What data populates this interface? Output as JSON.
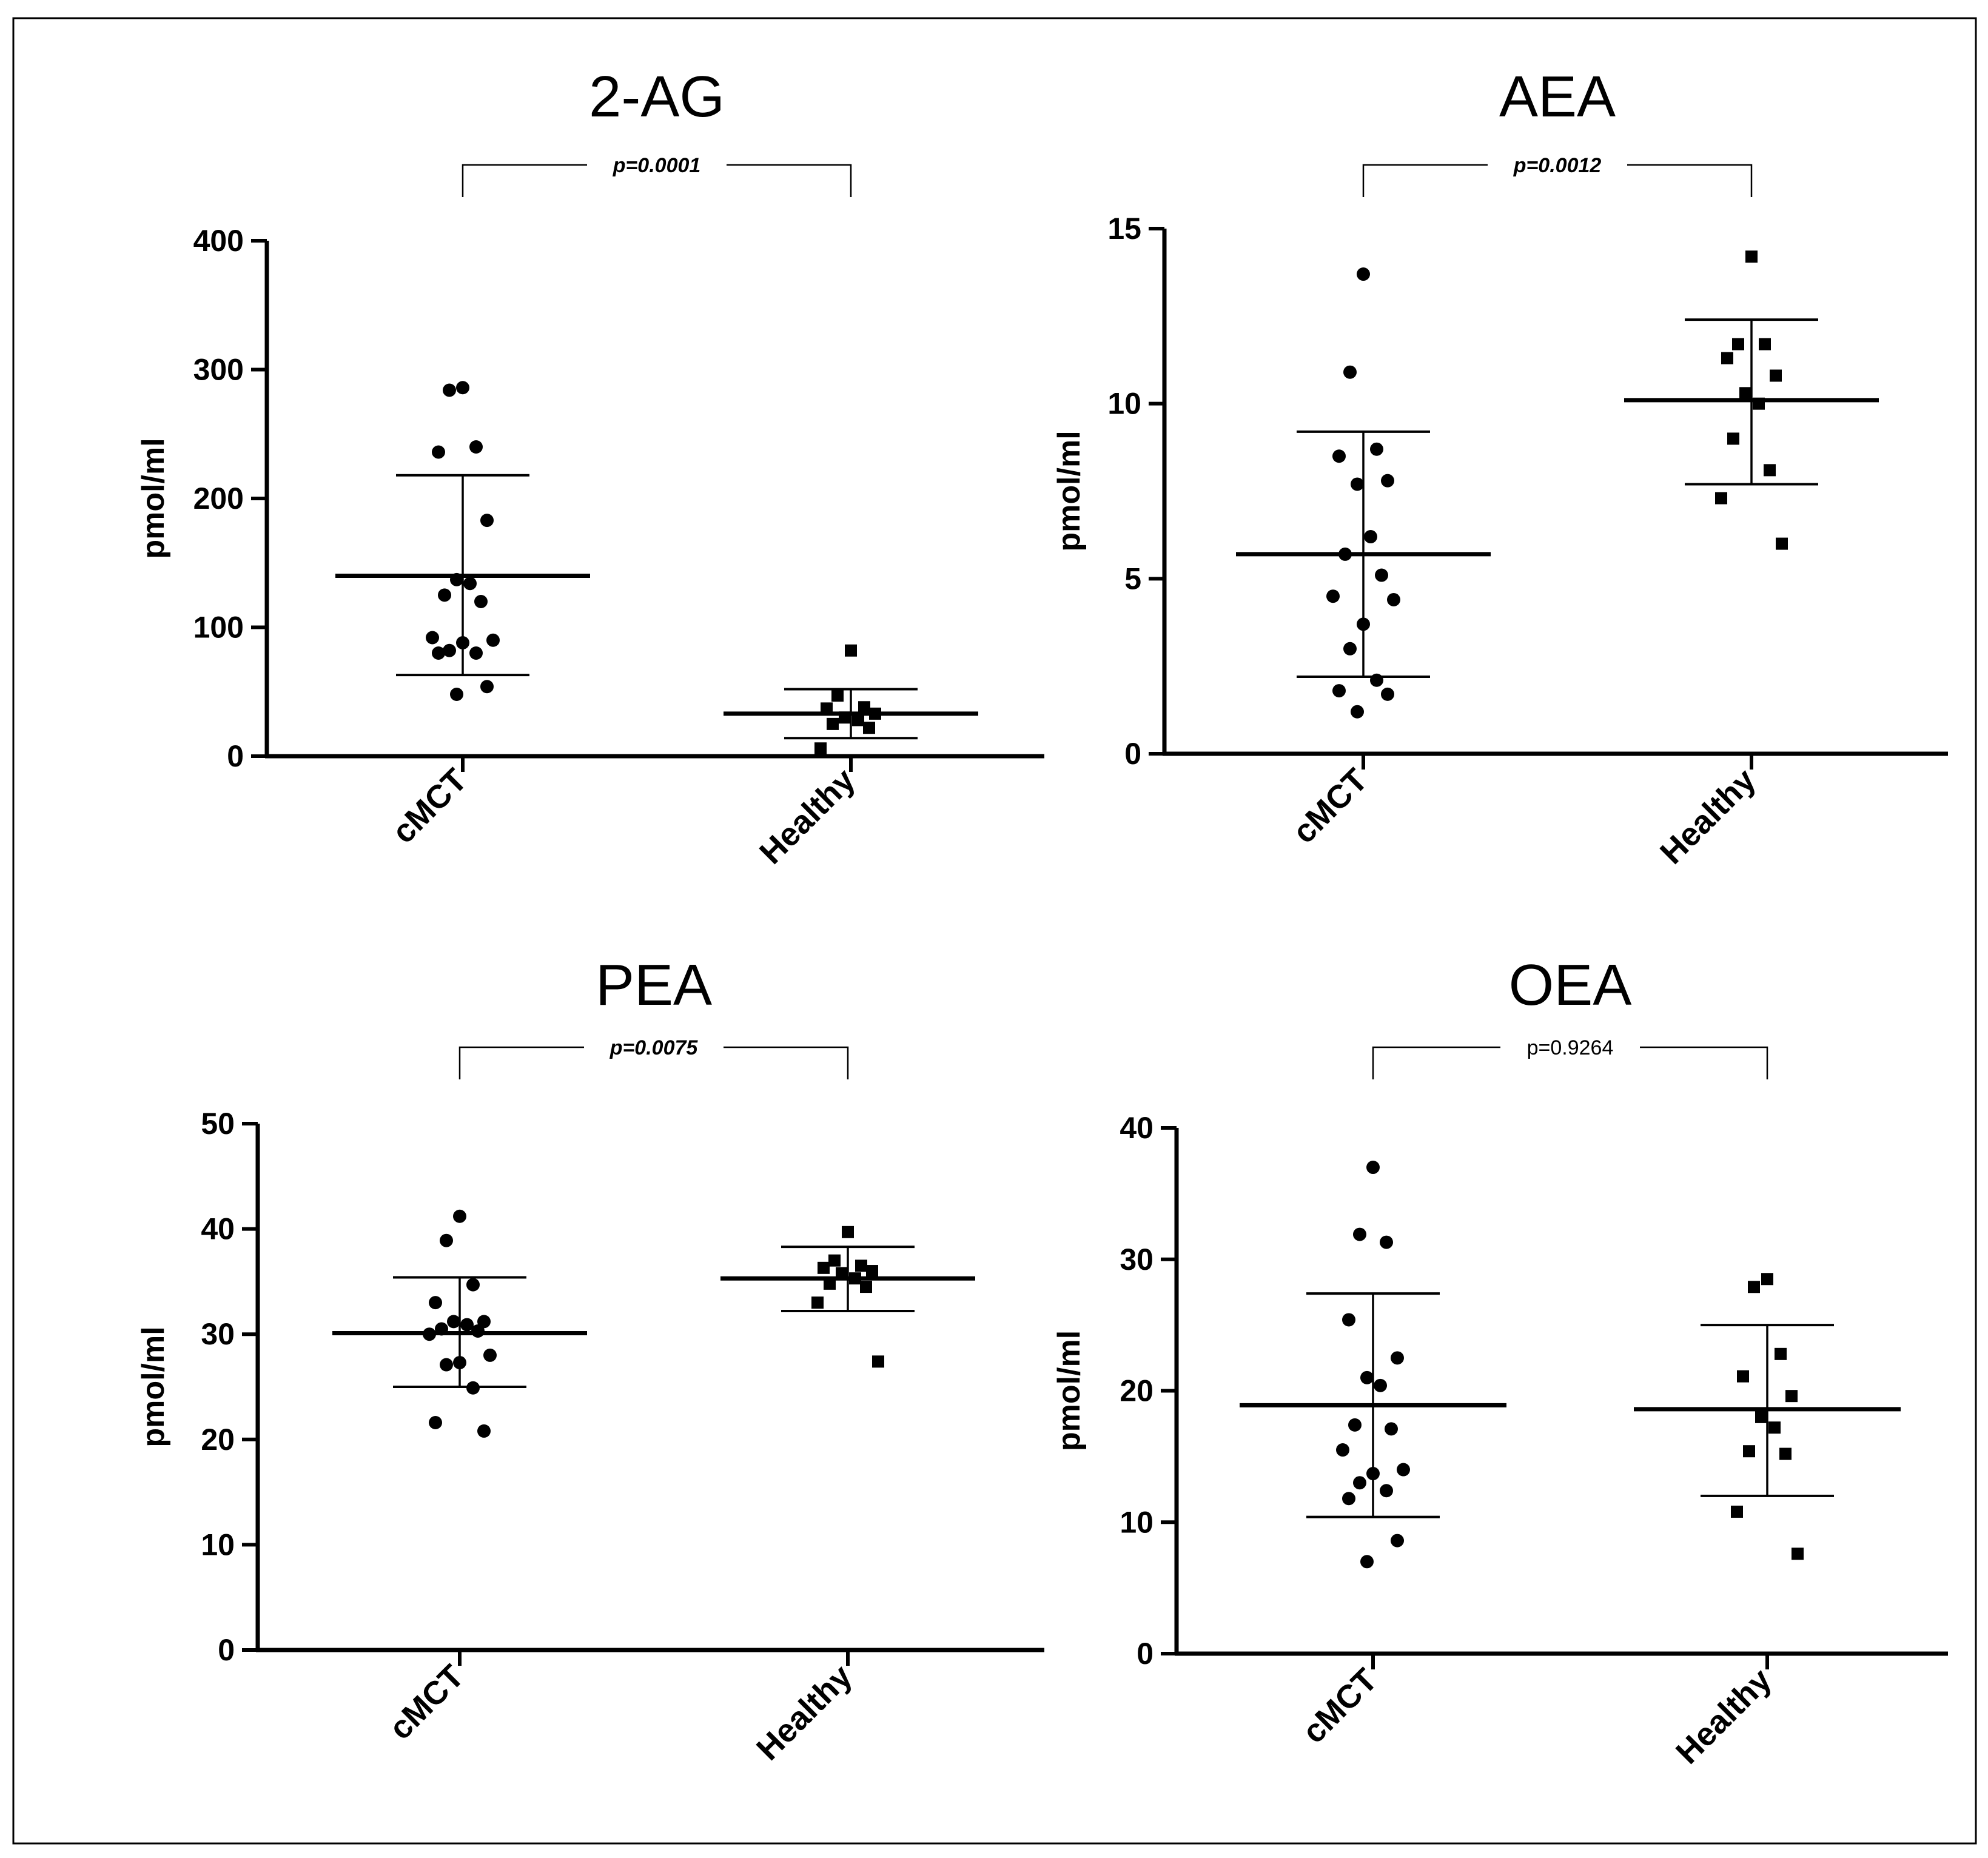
{
  "chart_data": [
    {
      "type": "scatter",
      "title": "2-AG",
      "ylabel": "pmol/ml",
      "ylim": [
        0,
        400
      ],
      "yticks": [
        0,
        100,
        200,
        300,
        400
      ],
      "categories": [
        "cMCT",
        "Healthy"
      ],
      "p_value": "p=0.0001",
      "p_significant": true,
      "groups": [
        {
          "category": "cMCT",
          "marker": "circle",
          "values": [
            286,
            284,
            240,
            236,
            183,
            137,
            134,
            125,
            120,
            92,
            90,
            88,
            82,
            80,
            80,
            54,
            48
          ],
          "mean": 140,
          "sd_upper": 218,
          "sd_lower": 63
        },
        {
          "category": "Healthy",
          "marker": "square",
          "values": [
            82,
            47,
            38,
            37,
            33,
            30,
            28,
            25,
            22,
            6
          ],
          "mean": 33,
          "sd_upper": 52,
          "sd_lower": 14
        }
      ]
    },
    {
      "type": "scatter",
      "title": "AEA",
      "ylabel": "pmol/ml",
      "ylim": [
        0,
        15
      ],
      "yticks": [
        0,
        5,
        10,
        15
      ],
      "categories": [
        "cMCT",
        "Healthy"
      ],
      "p_value": "p=0.0012",
      "p_significant": true,
      "groups": [
        {
          "category": "cMCT",
          "marker": "circle",
          "values": [
            13.7,
            10.9,
            8.7,
            8.5,
            7.8,
            7.7,
            6.2,
            5.7,
            5.1,
            4.5,
            4.4,
            3.7,
            3.0,
            2.1,
            1.8,
            1.7,
            1.2
          ],
          "mean": 5.7,
          "sd_upper": 9.2,
          "sd_lower": 2.2
        },
        {
          "category": "Healthy",
          "marker": "square",
          "values": [
            14.2,
            11.7,
            11.7,
            11.3,
            10.8,
            10.3,
            10.0,
            9.0,
            8.1,
            7.3,
            6.0
          ],
          "mean": 10.1,
          "sd_upper": 12.4,
          "sd_lower": 7.7
        }
      ]
    },
    {
      "type": "scatter",
      "title": "PEA",
      "ylabel": "pmol/ml",
      "ylim": [
        0,
        50
      ],
      "yticks": [
        0,
        10,
        20,
        30,
        40,
        50
      ],
      "categories": [
        "cMCT",
        "Healthy"
      ],
      "p_value": "p=0.0075",
      "p_significant": true,
      "groups": [
        {
          "category": "cMCT",
          "marker": "circle",
          "values": [
            41.2,
            38.9,
            34.7,
            33.0,
            31.2,
            31.2,
            30.9,
            30.5,
            30.3,
            30.0,
            28.0,
            27.3,
            27.1,
            24.9,
            21.6,
            20.8
          ],
          "mean": 30.1,
          "sd_upper": 35.4,
          "sd_lower": 25.0
        },
        {
          "category": "Healthy",
          "marker": "square",
          "values": [
            39.7,
            37.0,
            36.5,
            36.3,
            36.0,
            35.8,
            35.3,
            34.8,
            34.5,
            33.0,
            27.4
          ],
          "mean": 35.3,
          "sd_upper": 38.3,
          "sd_lower": 32.2
        }
      ]
    },
    {
      "type": "scatter",
      "title": "OEA",
      "ylabel": "pmol/ml",
      "ylim": [
        0,
        40
      ],
      "yticks": [
        0,
        10,
        20,
        30,
        40
      ],
      "categories": [
        "cMCT",
        "Healthy"
      ],
      "p_value": "p=0.9264",
      "p_significant": false,
      "groups": [
        {
          "category": "cMCT",
          "marker": "circle",
          "values": [
            37.0,
            31.9,
            31.3,
            25.4,
            22.5,
            21.0,
            20.4,
            17.4,
            17.1,
            15.5,
            14.0,
            13.7,
            13.0,
            12.4,
            11.8,
            8.6,
            7.0
          ],
          "mean": 18.9,
          "sd_upper": 27.4,
          "sd_lower": 10.4
        },
        {
          "category": "Healthy",
          "marker": "square",
          "values": [
            28.5,
            27.9,
            22.8,
            21.1,
            19.6,
            18.0,
            17.2,
            15.4,
            15.2,
            10.8,
            7.6
          ],
          "mean": 18.6,
          "sd_upper": 25.0,
          "sd_lower": 12.0
        }
      ]
    }
  ]
}
